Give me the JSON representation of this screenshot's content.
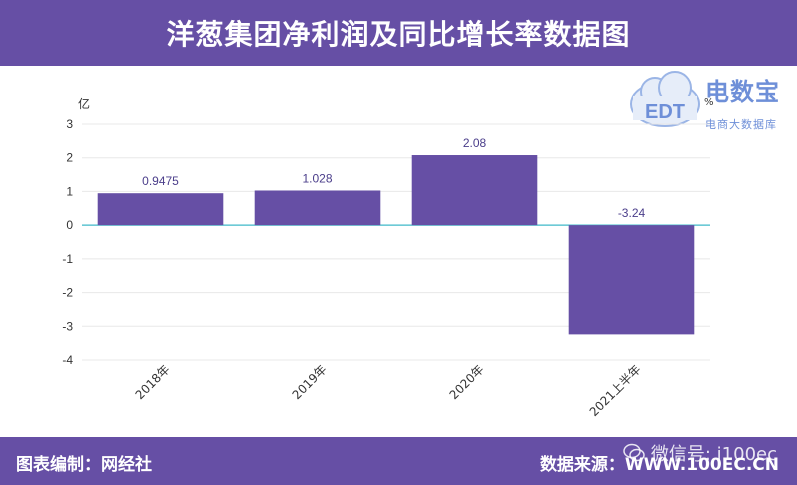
{
  "header": {
    "title": "洋葱集团净利润及同比增长率数据图"
  },
  "footer": {
    "left": "图表编制：网经社",
    "right": "数据来源：WWW.100EC.CN"
  },
  "watermark": {
    "text": "微信号: i100ec"
  },
  "logo": {
    "main": "电数宝",
    "sub": "电商大数据库",
    "badge": "EDT"
  },
  "colors": {
    "brand": "#664fa5",
    "bar": "#664fa5",
    "zero_line": "#3fb8c8"
  },
  "chart_data": {
    "type": "bar",
    "title": "洋葱集团净利润及同比增长率数据图",
    "ylabel": "亿",
    "y2label": "%",
    "ylim": [
      -4,
      3
    ],
    "yticks": [
      3,
      2,
      1,
      0,
      -1,
      -2,
      -3,
      -4
    ],
    "categories": [
      "2018年",
      "2019年",
      "2020年",
      "2021上半年"
    ],
    "values": [
      0.9475,
      1.028,
      2.08,
      -3.24
    ],
    "data_labels": [
      "0.9475",
      "1.028",
      "2.08",
      "-3.24"
    ],
    "grid": true,
    "legend": "none"
  }
}
